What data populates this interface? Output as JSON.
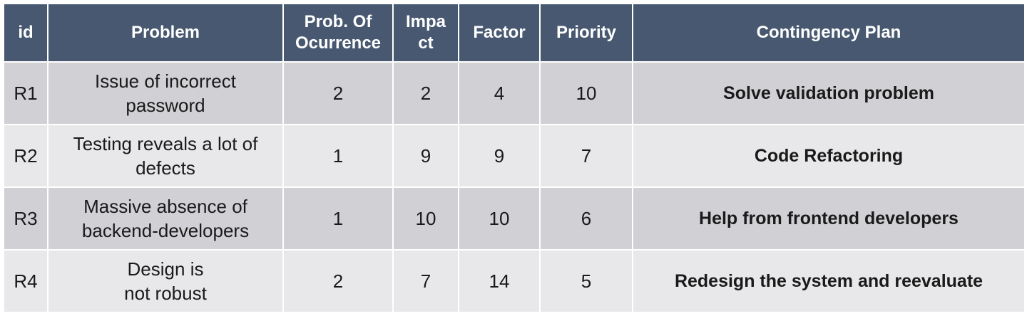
{
  "headers": {
    "id": "id",
    "problem": "Problem",
    "prob_occurrence": "Prob. Of\nOcurrence",
    "impact": "Impa\nct",
    "factor": "Factor",
    "priority": "Priority",
    "contingency": "Contingency Plan"
  },
  "rows": [
    {
      "id": "R1",
      "problem": "Issue of incorrect\npassword",
      "prob": "2",
      "impact": "2",
      "factor": "4",
      "priority": "10",
      "plan": "Solve validation problem"
    },
    {
      "id": "R2",
      "problem": "Testing reveals a lot of\ndefects",
      "prob": "1",
      "impact": "9",
      "factor": "9",
      "priority": "7",
      "plan": "Code Refactoring"
    },
    {
      "id": "R3",
      "problem": "Massive absence of\nbackend-developers",
      "prob": "1",
      "impact": "10",
      "factor": "10",
      "priority": "6",
      "plan": "Help from frontend developers"
    },
    {
      "id": "R4",
      "problem": "Design is\nnot robust",
      "prob": "2",
      "impact": "7",
      "factor": "14",
      "priority": "5",
      "plan": "Redesign the system and reevaluate"
    }
  ],
  "colors": {
    "header_bg": "#475870",
    "row_odd": "#d0d0d5",
    "row_even": "#e8e8ea"
  }
}
